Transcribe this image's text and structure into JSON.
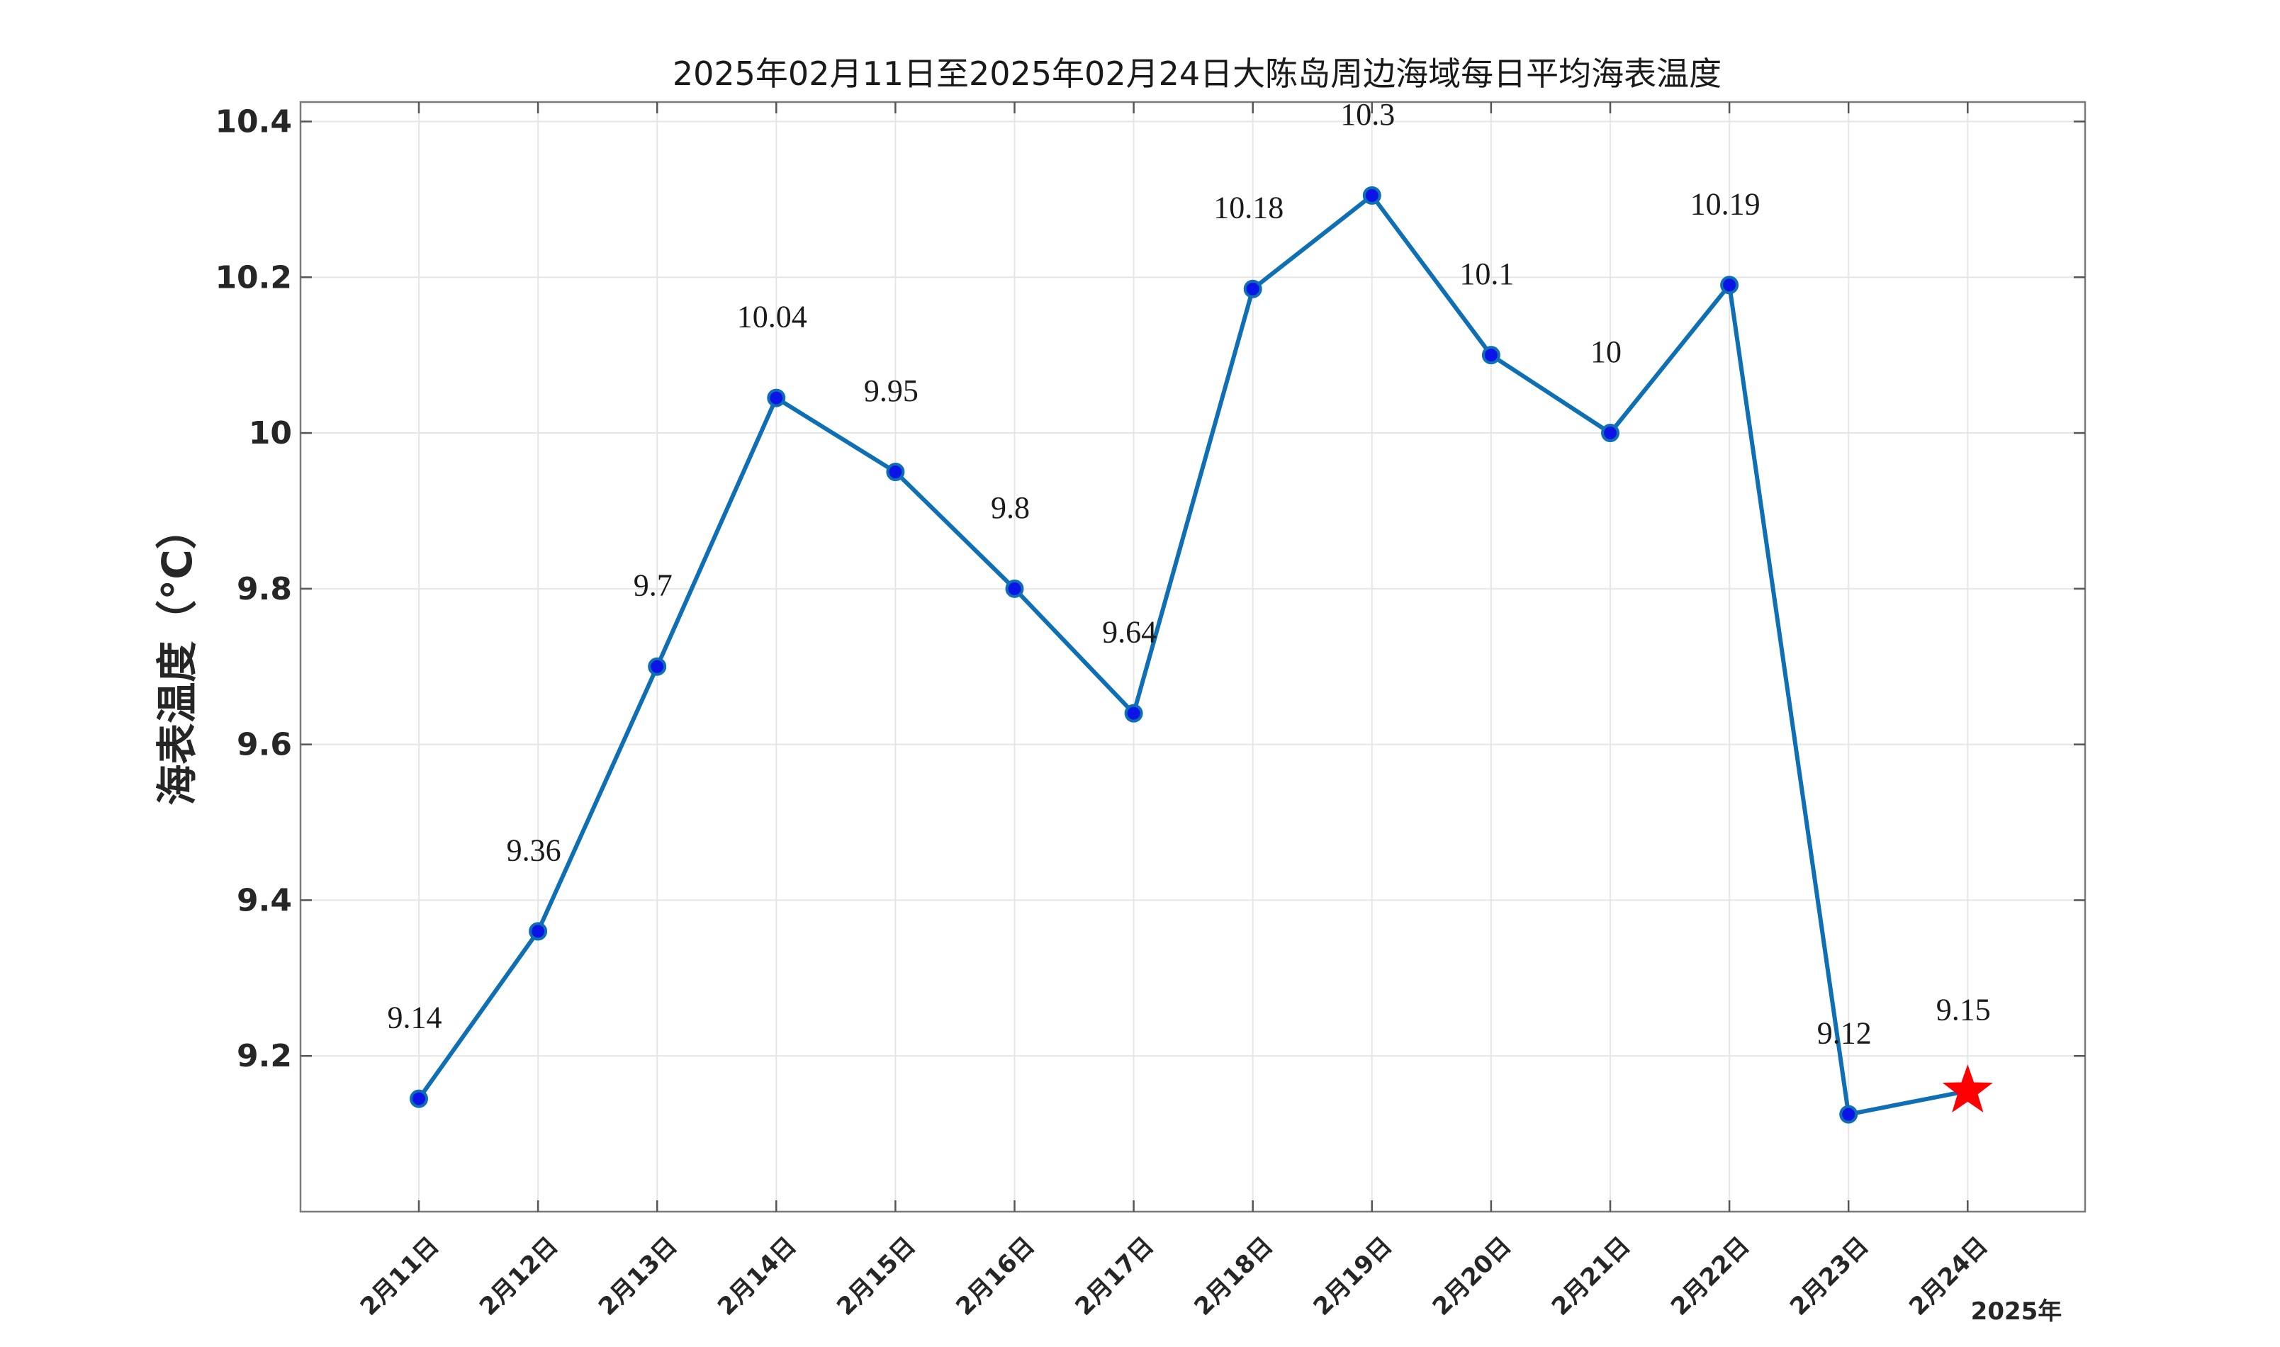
{
  "chart_data": {
    "type": "line",
    "title": "2025年02月11日至2025年02月24日大陈岛周边海域每日平均海表温度",
    "xlabel": "2025年",
    "ylabel": "海表温度（°C）",
    "categories": [
      "2月11日",
      "2月12日",
      "2月13日",
      "2月14日",
      "2月15日",
      "2月16日",
      "2月17日",
      "2月18日",
      "2月19日",
      "2月20日",
      "2月21日",
      "2月22日",
      "2月23日",
      "2月24日"
    ],
    "values": [
      9.145,
      9.36,
      9.7,
      10.045,
      9.95,
      9.8,
      9.64,
      10.185,
      10.305,
      10.1,
      10.0,
      10.19,
      9.125,
      9.155
    ],
    "data_labels": [
      "9.14",
      "9.36",
      "9.7",
      "10.04",
      "9.95",
      "9.8",
      "9.64",
      "10.18",
      "10.3",
      "10.1",
      "10",
      "10.19",
      "9.12",
      "9.15"
    ],
    "yticks": [
      "9.2",
      "9.4",
      "9.6",
      "9.8",
      "10",
      "10.2",
      "10.4"
    ],
    "ylim": [
      9.0,
      10.425
    ],
    "grid": true,
    "line_color": "#0e6fb5",
    "marker_color": "#0a14e6",
    "highlight_last": {
      "marker": "star",
      "color": "#ff0000"
    }
  }
}
